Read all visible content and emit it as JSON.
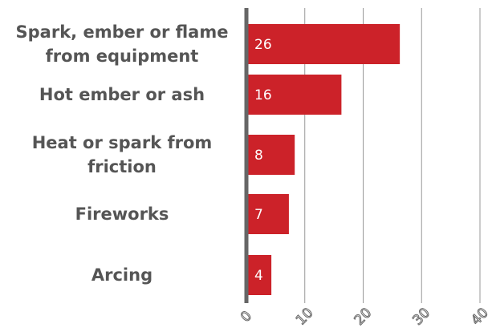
{
  "chart_data": {
    "type": "bar",
    "orientation": "horizontal",
    "categories": [
      "Spark, ember or flame from equipment",
      "Hot ember or ash",
      "Heat or spark from friction",
      "Fireworks",
      "Arcing"
    ],
    "values": [
      26,
      16,
      8,
      7,
      4
    ],
    "color": "#cc2229",
    "xlim": [
      0,
      40
    ],
    "xticks": [
      0,
      10,
      20,
      30,
      40
    ],
    "grid": true
  }
}
